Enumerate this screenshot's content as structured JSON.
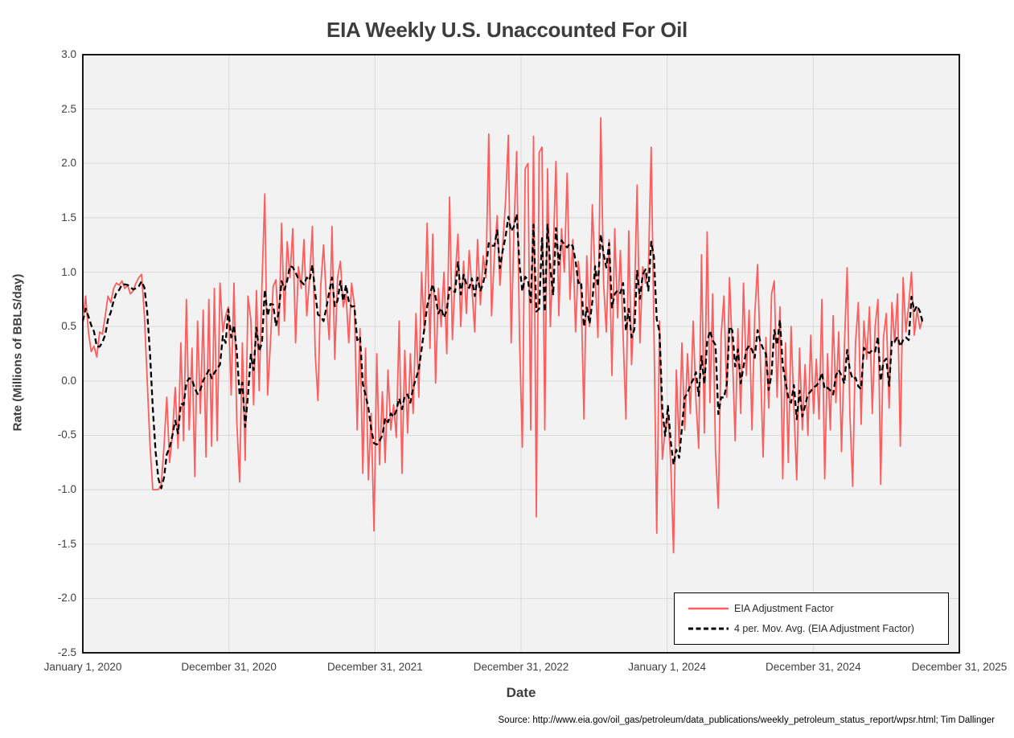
{
  "title": "EIA Weekly U.S. Unaccounted For Oil",
  "source": "Source: http://www.eia.gov/oil_gas/petroleum/data_publications/weekly_petroleum_status_report/wpsr.html; Tim Dallinger",
  "chart_data": {
    "type": "line",
    "title": "EIA Weekly U.S. Unaccounted For Oil",
    "xlabel": "Date",
    "ylabel": "Rate (Millions of BBLS/day)",
    "ylim": [
      -2.5,
      3.0
    ],
    "grid": true,
    "plot_background": "#f2f2f2",
    "gridline_color": "#d9d9d9",
    "frame_color": "#000000",
    "legend_position": "bottom-right",
    "y_ticks": [
      3.0,
      2.5,
      2.0,
      1.5,
      1.0,
      0.5,
      0.0,
      -0.5,
      -1.0,
      -1.5,
      -2.0,
      -2.5
    ],
    "y_tick_labels": [
      "3.0",
      "2.5",
      "2.0",
      "1.5",
      "1.0",
      "0.5",
      "0.0",
      "-0.5",
      "-1.0",
      "-1.5",
      "-2.0",
      "-2.5"
    ],
    "x_tick_labels": [
      "January 1, 2020",
      "December 31, 2020",
      "December 31, 2021",
      "December 31, 2022",
      "January 1, 2024",
      "December 31, 2024",
      "December 31, 2025"
    ],
    "x_span_years": 6,
    "weeks_per_year": 52.18,
    "x_unit": "weekly observations starting January 1, 2020",
    "series": [
      {
        "name": "EIA Adjustment Factor",
        "color": "#fa5e5e",
        "style": "solid",
        "values": [
          0.55,
          0.78,
          0.45,
          0.27,
          0.32,
          0.22,
          0.45,
          0.43,
          0.6,
          0.78,
          0.72,
          0.85,
          0.9,
          0.88,
          0.92,
          0.85,
          0.88,
          0.8,
          0.83,
          0.9,
          0.95,
          0.98,
          0.6,
          0.0,
          -0.6,
          -1.0,
          -1.0,
          -1.0,
          -0.95,
          -0.6,
          -0.15,
          -0.75,
          -0.5,
          -0.06,
          -0.62,
          0.35,
          -0.55,
          0.75,
          -0.45,
          0.3,
          -0.88,
          0.55,
          -0.3,
          0.65,
          -0.7,
          0.75,
          -0.6,
          0.85,
          -0.55,
          0.9,
          0.45,
          0.6,
          0.68,
          -0.13,
          0.9,
          -0.38,
          -0.93,
          0.35,
          -0.73,
          0.78,
          0.57,
          -0.22,
          0.83,
          -0.09,
          0.89,
          1.72,
          -0.13,
          0.35,
          0.87,
          0.93,
          0.42,
          1.45,
          0.55,
          1.28,
          0.95,
          1.4,
          0.35,
          1.05,
          0.85,
          1.3,
          0.6,
          0.95,
          1.42,
          0.25,
          -0.18,
          0.88,
          1.25,
          0.75,
          0.38,
          1.42,
          0.2,
          0.95,
          1.1,
          0.68,
          0.8,
          0.35,
          0.9,
          0.7,
          -0.45,
          0.48,
          -0.85,
          0.3,
          -0.91,
          -0.3,
          -1.38,
          0.25,
          -0.77,
          -0.1,
          -0.75,
          0.1,
          -0.45,
          -0.22,
          -0.52,
          0.55,
          -0.85,
          0.28,
          -0.48,
          0.25,
          -0.3,
          0.62,
          -0.15,
          1.0,
          0.45,
          1.45,
          0.3,
          1.35,
          -0.02,
          0.85,
          0.5,
          1.0,
          0.25,
          1.69,
          0.38,
          0.95,
          1.35,
          0.5,
          1.1,
          0.62,
          1.2,
          0.85,
          0.45,
          1.3,
          0.7,
          1.15,
          0.95,
          2.27,
          0.6,
          1.15,
          1.52,
          0.88,
          1.25,
          1.65,
          2.26,
          0.35,
          1.42,
          2.11,
          0.38,
          -0.61,
          1.95,
          2.0,
          -0.45,
          2.25,
          -1.25,
          2.1,
          2.15,
          -0.45,
          1.95,
          0.5,
          1.15,
          2.02,
          0.6,
          1.4,
          1.0,
          1.91,
          0.75,
          1.3,
          0.45,
          1.1,
          0.8,
          -0.35,
          1.15,
          0.5,
          1.62,
          0.95,
          0.4,
          2.42,
          0.9,
          0.45,
          1.3,
          0.05,
          1.4,
          0.58,
          1.2,
          0.42,
          -0.35,
          1.38,
          0.15,
          0.72,
          1.8,
          0.35,
          1.05,
          0.9,
          1.02,
          2.15,
          0.5,
          -1.4,
          0.55,
          -0.72,
          -0.45,
          -0.3,
          -0.75,
          -1.58,
          0.1,
          -0.6,
          0.35,
          -0.45,
          0.25,
          -0.3,
          0.55,
          -0.18,
          -0.62,
          1.16,
          -0.48,
          1.37,
          -0.2,
          0.8,
          -0.65,
          -1.17,
          0.42,
          0.78,
          -0.15,
          0.95,
          0.28,
          -0.55,
          0.48,
          -0.3,
          0.9,
          0.05,
          0.65,
          -0.45,
          0.6,
          1.07,
          0.22,
          -0.7,
          0.4,
          -0.25,
          0.8,
          0.92,
          -0.15,
          0.68,
          -0.9,
          0.35,
          -0.75,
          0.5,
          -0.25,
          -0.91,
          0.3,
          -0.45,
          0.15,
          -0.5,
          0.42,
          -0.3,
          0.2,
          -0.35,
          0.75,
          -0.9,
          0.25,
          -0.45,
          0.6,
          -0.2,
          0.45,
          -0.65,
          0.3,
          1.04,
          -0.3,
          -0.97,
          0.35,
          0.72,
          -0.4,
          0.55,
          0.2,
          0.68,
          -0.3,
          0.5,
          0.75,
          -0.95,
          0.4,
          0.62,
          -0.25,
          0.72,
          0.35,
          0.8,
          -0.6,
          0.95,
          0.45,
          0.7,
          1.0,
          0.42,
          0.65,
          0.48,
          0.58
        ]
      },
      {
        "name": "4 per. Mov. Avg. (EIA Adjustment Factor)",
        "color": "#000000",
        "style": "dashed",
        "derived": "4-period trailing moving average of EIA Adjustment Factor"
      }
    ]
  }
}
